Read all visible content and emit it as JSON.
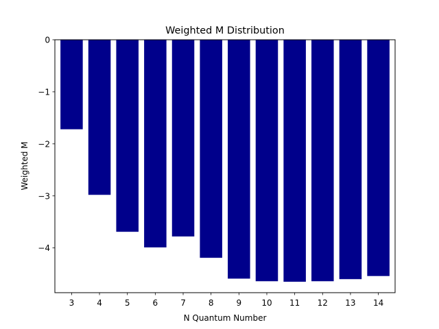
{
  "chart_data": {
    "type": "bar",
    "title": "Weighted M Distribution",
    "xlabel": "N Quantum Number",
    "ylabel": "Weighted M",
    "categories": [
      "3",
      "4",
      "5",
      "6",
      "7",
      "8",
      "9",
      "10",
      "11",
      "12",
      "13",
      "14"
    ],
    "values": [
      -1.72,
      -2.98,
      -3.69,
      -3.99,
      -3.78,
      -4.19,
      -4.59,
      -4.64,
      -4.65,
      -4.64,
      -4.6,
      -4.54
    ],
    "ylim": [
      -4.86,
      0
    ],
    "yticks": [
      0,
      -1,
      -2,
      -3,
      -4
    ],
    "ytick_labels": [
      "0",
      "−1",
      "−2",
      "−3",
      "−4"
    ],
    "bar_color": "#00008b",
    "grid": false,
    "legend": null
  }
}
